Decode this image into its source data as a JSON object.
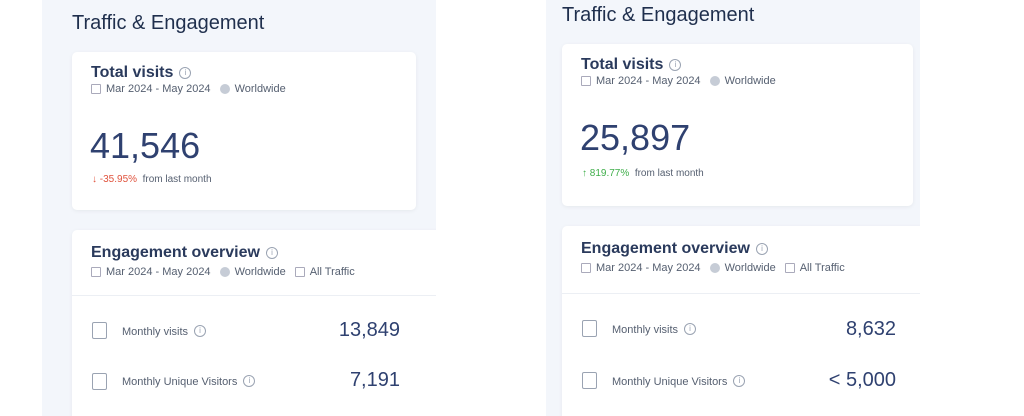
{
  "panels": [
    {
      "title": "Traffic & Engagement",
      "total": {
        "title": "Total visits",
        "date": "Mar 2024 - May 2024",
        "region": "Worldwide",
        "value": "41,546",
        "delta": "↓ -35.95%",
        "delta_dir": "down",
        "delta_suffix": "from last month"
      },
      "engagement": {
        "title": "Engagement overview",
        "date": "Mar 2024 - May 2024",
        "region": "Worldwide",
        "traffic": "All Traffic",
        "rows": [
          {
            "label": "Monthly visits",
            "value": "13,849"
          },
          {
            "label": "Monthly Unique Visitors",
            "value": "7,191"
          }
        ]
      }
    },
    {
      "title": "Traffic & Engagement",
      "total": {
        "title": "Total visits",
        "date": "Mar 2024 - May 2024",
        "region": "Worldwide",
        "value": "25,897",
        "delta": "↑ 819.77%",
        "delta_dir": "up",
        "delta_suffix": "from last month"
      },
      "engagement": {
        "title": "Engagement overview",
        "date": "Mar 2024 - May 2024",
        "region": "Worldwide",
        "traffic": "All Traffic",
        "rows": [
          {
            "label": "Monthly visits",
            "value": "8,632"
          },
          {
            "label": "Monthly Unique Visitors",
            "value": "< 5,000"
          }
        ]
      }
    }
  ],
  "info_glyph": "i"
}
